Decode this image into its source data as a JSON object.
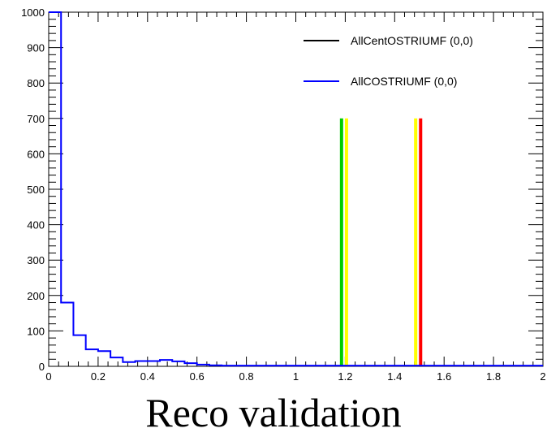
{
  "caption": "Reco validation",
  "chart_data": {
    "type": "histogram",
    "xlim": [
      0,
      2
    ],
    "ylim": [
      0,
      1000
    ],
    "x_ticks": [
      "0",
      "0.2",
      "0.4",
      "0.6",
      "0.8",
      "1",
      "1.2",
      "1.4",
      "1.6",
      "1.8",
      "2"
    ],
    "y_ticks": [
      "0",
      "100",
      "200",
      "300",
      "400",
      "500",
      "600",
      "700",
      "800",
      "900",
      "1000"
    ],
    "legend_position": "top-right",
    "series": [
      {
        "name": "AllCentOSTRIUMF (0,0)",
        "color": "#000000",
        "bin_edges": [],
        "values": []
      },
      {
        "name": "AllCOSTRIUMF (0,0)",
        "color": "#0000ff",
        "bin_width": 0.05,
        "bin_start": 0,
        "values": [
          1000,
          180,
          88,
          48,
          43,
          25,
          12,
          15,
          15,
          18,
          14,
          9,
          5,
          3,
          2,
          2,
          2,
          2,
          2,
          2,
          2,
          2,
          2,
          2,
          2,
          2,
          2,
          2,
          2,
          2,
          2,
          2,
          2,
          2,
          2,
          2,
          2,
          2,
          2,
          2
        ]
      }
    ],
    "vertical_lines": [
      {
        "x": 1.185,
        "y": 700,
        "color": "#00cc00"
      },
      {
        "x": 1.205,
        "y": 700,
        "color": "#ffff00"
      },
      {
        "x": 1.485,
        "y": 700,
        "color": "#ffff00"
      },
      {
        "x": 1.505,
        "y": 700,
        "color": "#ff0000"
      }
    ]
  }
}
